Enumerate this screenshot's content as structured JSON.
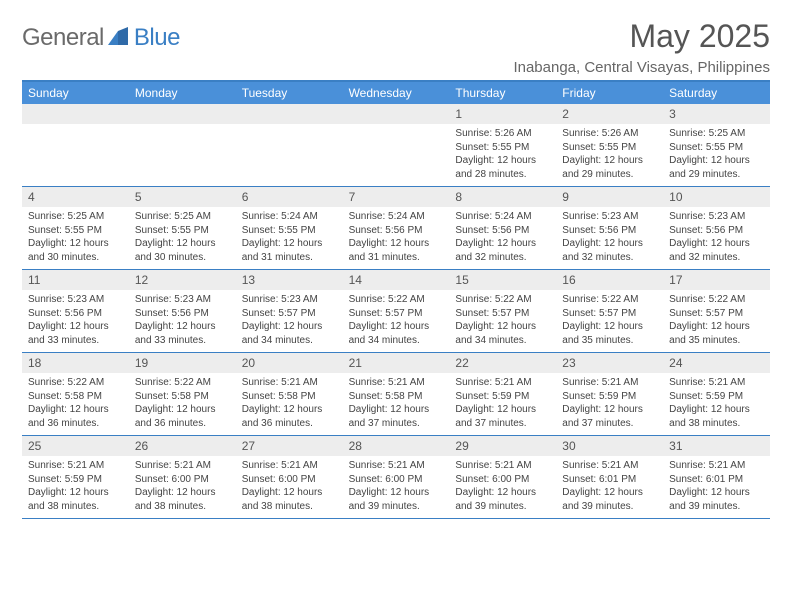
{
  "brand": {
    "general": "General",
    "blue": "Blue"
  },
  "title": "May 2025",
  "location": "Inabanga, Central Visayas, Philippines",
  "colors": {
    "header_bg": "#4a90d9",
    "border": "#3a7fc4",
    "daynum_bg": "#ededed",
    "text": "#444444",
    "title": "#555555",
    "location": "#666666",
    "logo_general": "#6a6a6a",
    "logo_blue": "#3a7fc4",
    "white": "#ffffff"
  },
  "weekdays": [
    "Sunday",
    "Monday",
    "Tuesday",
    "Wednesday",
    "Thursday",
    "Friday",
    "Saturday"
  ],
  "weeks": [
    [
      {
        "n": "",
        "sr": "",
        "ss": "",
        "dl": ""
      },
      {
        "n": "",
        "sr": "",
        "ss": "",
        "dl": ""
      },
      {
        "n": "",
        "sr": "",
        "ss": "",
        "dl": ""
      },
      {
        "n": "",
        "sr": "",
        "ss": "",
        "dl": ""
      },
      {
        "n": "1",
        "sr": "Sunrise: 5:26 AM",
        "ss": "Sunset: 5:55 PM",
        "dl": "Daylight: 12 hours and 28 minutes."
      },
      {
        "n": "2",
        "sr": "Sunrise: 5:26 AM",
        "ss": "Sunset: 5:55 PM",
        "dl": "Daylight: 12 hours and 29 minutes."
      },
      {
        "n": "3",
        "sr": "Sunrise: 5:25 AM",
        "ss": "Sunset: 5:55 PM",
        "dl": "Daylight: 12 hours and 29 minutes."
      }
    ],
    [
      {
        "n": "4",
        "sr": "Sunrise: 5:25 AM",
        "ss": "Sunset: 5:55 PM",
        "dl": "Daylight: 12 hours and 30 minutes."
      },
      {
        "n": "5",
        "sr": "Sunrise: 5:25 AM",
        "ss": "Sunset: 5:55 PM",
        "dl": "Daylight: 12 hours and 30 minutes."
      },
      {
        "n": "6",
        "sr": "Sunrise: 5:24 AM",
        "ss": "Sunset: 5:55 PM",
        "dl": "Daylight: 12 hours and 31 minutes."
      },
      {
        "n": "7",
        "sr": "Sunrise: 5:24 AM",
        "ss": "Sunset: 5:56 PM",
        "dl": "Daylight: 12 hours and 31 minutes."
      },
      {
        "n": "8",
        "sr": "Sunrise: 5:24 AM",
        "ss": "Sunset: 5:56 PM",
        "dl": "Daylight: 12 hours and 32 minutes."
      },
      {
        "n": "9",
        "sr": "Sunrise: 5:23 AM",
        "ss": "Sunset: 5:56 PM",
        "dl": "Daylight: 12 hours and 32 minutes."
      },
      {
        "n": "10",
        "sr": "Sunrise: 5:23 AM",
        "ss": "Sunset: 5:56 PM",
        "dl": "Daylight: 12 hours and 32 minutes."
      }
    ],
    [
      {
        "n": "11",
        "sr": "Sunrise: 5:23 AM",
        "ss": "Sunset: 5:56 PM",
        "dl": "Daylight: 12 hours and 33 minutes."
      },
      {
        "n": "12",
        "sr": "Sunrise: 5:23 AM",
        "ss": "Sunset: 5:56 PM",
        "dl": "Daylight: 12 hours and 33 minutes."
      },
      {
        "n": "13",
        "sr": "Sunrise: 5:23 AM",
        "ss": "Sunset: 5:57 PM",
        "dl": "Daylight: 12 hours and 34 minutes."
      },
      {
        "n": "14",
        "sr": "Sunrise: 5:22 AM",
        "ss": "Sunset: 5:57 PM",
        "dl": "Daylight: 12 hours and 34 minutes."
      },
      {
        "n": "15",
        "sr": "Sunrise: 5:22 AM",
        "ss": "Sunset: 5:57 PM",
        "dl": "Daylight: 12 hours and 34 minutes."
      },
      {
        "n": "16",
        "sr": "Sunrise: 5:22 AM",
        "ss": "Sunset: 5:57 PM",
        "dl": "Daylight: 12 hours and 35 minutes."
      },
      {
        "n": "17",
        "sr": "Sunrise: 5:22 AM",
        "ss": "Sunset: 5:57 PM",
        "dl": "Daylight: 12 hours and 35 minutes."
      }
    ],
    [
      {
        "n": "18",
        "sr": "Sunrise: 5:22 AM",
        "ss": "Sunset: 5:58 PM",
        "dl": "Daylight: 12 hours and 36 minutes."
      },
      {
        "n": "19",
        "sr": "Sunrise: 5:22 AM",
        "ss": "Sunset: 5:58 PM",
        "dl": "Daylight: 12 hours and 36 minutes."
      },
      {
        "n": "20",
        "sr": "Sunrise: 5:21 AM",
        "ss": "Sunset: 5:58 PM",
        "dl": "Daylight: 12 hours and 36 minutes."
      },
      {
        "n": "21",
        "sr": "Sunrise: 5:21 AM",
        "ss": "Sunset: 5:58 PM",
        "dl": "Daylight: 12 hours and 37 minutes."
      },
      {
        "n": "22",
        "sr": "Sunrise: 5:21 AM",
        "ss": "Sunset: 5:59 PM",
        "dl": "Daylight: 12 hours and 37 minutes."
      },
      {
        "n": "23",
        "sr": "Sunrise: 5:21 AM",
        "ss": "Sunset: 5:59 PM",
        "dl": "Daylight: 12 hours and 37 minutes."
      },
      {
        "n": "24",
        "sr": "Sunrise: 5:21 AM",
        "ss": "Sunset: 5:59 PM",
        "dl": "Daylight: 12 hours and 38 minutes."
      }
    ],
    [
      {
        "n": "25",
        "sr": "Sunrise: 5:21 AM",
        "ss": "Sunset: 5:59 PM",
        "dl": "Daylight: 12 hours and 38 minutes."
      },
      {
        "n": "26",
        "sr": "Sunrise: 5:21 AM",
        "ss": "Sunset: 6:00 PM",
        "dl": "Daylight: 12 hours and 38 minutes."
      },
      {
        "n": "27",
        "sr": "Sunrise: 5:21 AM",
        "ss": "Sunset: 6:00 PM",
        "dl": "Daylight: 12 hours and 38 minutes."
      },
      {
        "n": "28",
        "sr": "Sunrise: 5:21 AM",
        "ss": "Sunset: 6:00 PM",
        "dl": "Daylight: 12 hours and 39 minutes."
      },
      {
        "n": "29",
        "sr": "Sunrise: 5:21 AM",
        "ss": "Sunset: 6:00 PM",
        "dl": "Daylight: 12 hours and 39 minutes."
      },
      {
        "n": "30",
        "sr": "Sunrise: 5:21 AM",
        "ss": "Sunset: 6:01 PM",
        "dl": "Daylight: 12 hours and 39 minutes."
      },
      {
        "n": "31",
        "sr": "Sunrise: 5:21 AM",
        "ss": "Sunset: 6:01 PM",
        "dl": "Daylight: 12 hours and 39 minutes."
      }
    ]
  ]
}
